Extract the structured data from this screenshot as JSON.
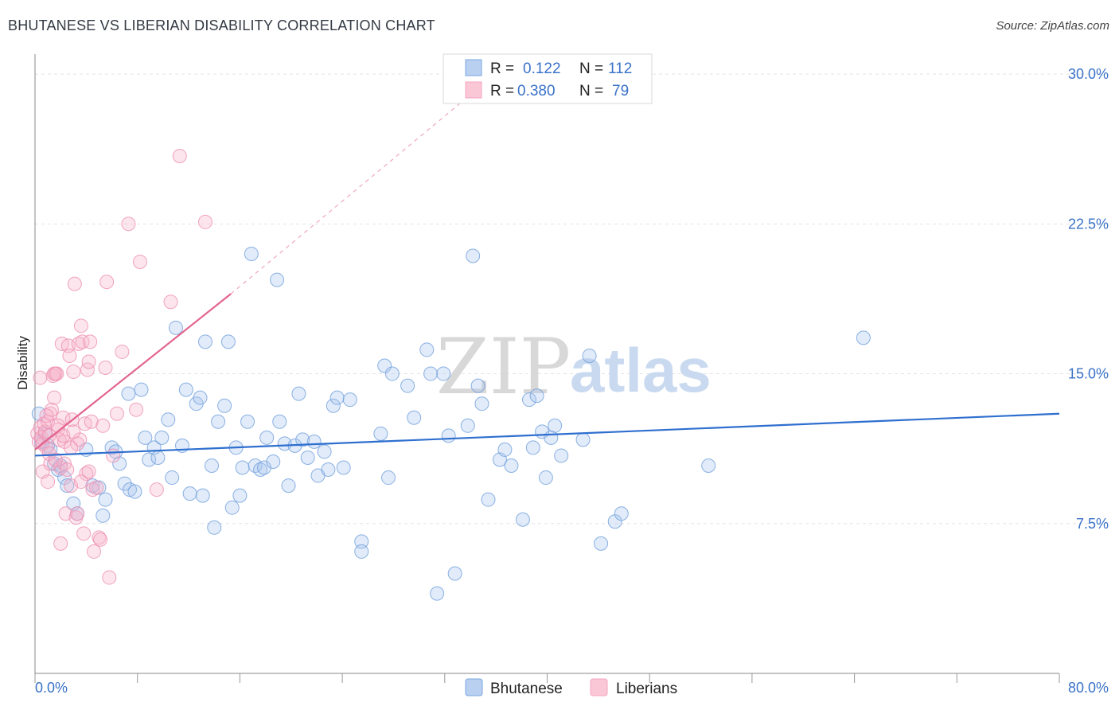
{
  "title": "BHUTANESE VS LIBERIAN DISABILITY CORRELATION CHART",
  "source": "Source: ZipAtlas.com",
  "chart_data": {
    "type": "scatter",
    "title": "BHUTANESE VS LIBERIAN DISABILITY CORRELATION CHART",
    "xlabel": "",
    "ylabel": "Disability",
    "xlim": [
      0,
      80
    ],
    "ylim": [
      0,
      31
    ],
    "x_tick_labels": [
      "0.0%",
      "80.0%"
    ],
    "y_ticks": [
      7.5,
      15.0,
      22.5,
      30.0
    ],
    "y_tick_labels": [
      "7.5%",
      "15.0%",
      "22.5%",
      "30.0%"
    ],
    "grid": true,
    "legend_position": "top-center",
    "watermark": [
      "ZIP",
      "atlas"
    ],
    "stats": [
      {
        "name": "Bhutanese",
        "R_label": "R =",
        "R": "0.122",
        "N_label": "N =",
        "N": "112"
      },
      {
        "name": "Liberians",
        "R_label": "R =",
        "R": "0.380",
        "N_label": "N =",
        "N": "79"
      }
    ],
    "series": [
      {
        "name": "Bhutanese",
        "color": "#7aa7e0",
        "line_color": "#2f6fcf",
        "trend": {
          "x0": 0,
          "y0": 10.9,
          "x1": 80,
          "y1": 13.0
        },
        "points": [
          [
            0.3,
            13.0
          ],
          [
            0.5,
            11.6
          ],
          [
            0.8,
            12.0
          ],
          [
            1.0,
            11.4
          ],
          [
            1.2,
            11.2
          ],
          [
            1.5,
            10.5
          ],
          [
            1.8,
            10.2
          ],
          [
            2.0,
            10.4
          ],
          [
            2.3,
            9.8
          ],
          [
            2.5,
            9.4
          ],
          [
            3.0,
            8.5
          ],
          [
            3.3,
            8.0
          ],
          [
            4.0,
            11.2
          ],
          [
            4.5,
            9.4
          ],
          [
            5.0,
            9.3
          ],
          [
            5.3,
            7.9
          ],
          [
            5.5,
            8.7
          ],
          [
            6.0,
            11.3
          ],
          [
            6.3,
            11.1
          ],
          [
            6.6,
            10.5
          ],
          [
            7.0,
            9.5
          ],
          [
            7.4,
            9.2
          ],
          [
            7.8,
            9.1
          ],
          [
            7.3,
            14.0
          ],
          [
            8.3,
            14.2
          ],
          [
            8.6,
            11.8
          ],
          [
            8.9,
            10.7
          ],
          [
            9.3,
            11.3
          ],
          [
            9.6,
            10.8
          ],
          [
            9.9,
            11.8
          ],
          [
            10.4,
            12.7
          ],
          [
            10.7,
            9.8
          ],
          [
            11.0,
            17.3
          ],
          [
            11.5,
            11.4
          ],
          [
            11.8,
            14.2
          ],
          [
            12.1,
            9.0
          ],
          [
            12.6,
            13.5
          ],
          [
            12.9,
            13.8
          ],
          [
            13.1,
            8.9
          ],
          [
            13.3,
            16.6
          ],
          [
            13.8,
            10.4
          ],
          [
            14.0,
            7.3
          ],
          [
            14.3,
            12.6
          ],
          [
            14.8,
            13.4
          ],
          [
            15.1,
            16.6
          ],
          [
            15.4,
            8.3
          ],
          [
            15.7,
            11.3
          ],
          [
            16.0,
            8.9
          ],
          [
            16.2,
            10.3
          ],
          [
            16.6,
            12.6
          ],
          [
            16.9,
            21.0
          ],
          [
            17.2,
            10.4
          ],
          [
            17.6,
            10.2
          ],
          [
            17.9,
            10.3
          ],
          [
            18.1,
            11.8
          ],
          [
            18.6,
            10.6
          ],
          [
            18.9,
            19.7
          ],
          [
            19.1,
            12.6
          ],
          [
            19.5,
            11.5
          ],
          [
            19.8,
            9.4
          ],
          [
            20.3,
            11.4
          ],
          [
            20.6,
            14.0
          ],
          [
            20.9,
            11.7
          ],
          [
            21.3,
            10.8
          ],
          [
            21.8,
            11.6
          ],
          [
            22.1,
            9.9
          ],
          [
            22.6,
            11.1
          ],
          [
            22.9,
            10.2
          ],
          [
            23.3,
            13.4
          ],
          [
            23.6,
            13.8
          ],
          [
            24.1,
            10.3
          ],
          [
            24.6,
            13.7
          ],
          [
            25.5,
            6.6
          ],
          [
            25.5,
            6.1
          ],
          [
            27.0,
            12.0
          ],
          [
            27.3,
            15.4
          ],
          [
            27.6,
            9.8
          ],
          [
            27.9,
            15.0
          ],
          [
            29.1,
            14.4
          ],
          [
            29.6,
            12.8
          ],
          [
            30.6,
            16.2
          ],
          [
            30.9,
            15.0
          ],
          [
            31.4,
            4.0
          ],
          [
            31.9,
            15.0
          ],
          [
            32.3,
            11.9
          ],
          [
            32.8,
            5.0
          ],
          [
            33.8,
            12.4
          ],
          [
            34.2,
            20.9
          ],
          [
            34.6,
            14.4
          ],
          [
            34.9,
            13.5
          ],
          [
            35.4,
            8.7
          ],
          [
            36.3,
            10.7
          ],
          [
            36.7,
            11.2
          ],
          [
            37.2,
            10.4
          ],
          [
            38.1,
            7.7
          ],
          [
            38.6,
            13.7
          ],
          [
            38.9,
            11.3
          ],
          [
            39.2,
            13.9
          ],
          [
            39.6,
            12.1
          ],
          [
            39.9,
            9.8
          ],
          [
            40.3,
            11.8
          ],
          [
            40.6,
            12.4
          ],
          [
            41.1,
            10.9
          ],
          [
            42.8,
            11.7
          ],
          [
            43.3,
            15.9
          ],
          [
            44.2,
            6.5
          ],
          [
            45.3,
            7.6
          ],
          [
            45.8,
            8.0
          ],
          [
            52.6,
            10.4
          ],
          [
            64.7,
            16.8
          ]
        ]
      },
      {
        "name": "Liberians",
        "color": "#f4a6c0",
        "line_color": "#e2638e",
        "trend": {
          "x0": 0,
          "y0": 11.2,
          "x1": 15.3,
          "y1": 19.0
        },
        "trend_ext": {
          "x0": 15.3,
          "y0": 19.0,
          "x1": 35.0,
          "y1": 29.5
        },
        "points": [
          [
            0.2,
            12.0
          ],
          [
            0.3,
            11.6
          ],
          [
            0.4,
            12.3
          ],
          [
            0.5,
            11.8
          ],
          [
            0.6,
            11.5
          ],
          [
            0.7,
            12.5
          ],
          [
            0.8,
            12.1
          ],
          [
            0.9,
            11.3
          ],
          [
            1.0,
            12.6
          ],
          [
            1.1,
            11.9
          ],
          [
            0.4,
            14.8
          ],
          [
            0.6,
            10.1
          ],
          [
            1.0,
            9.6
          ],
          [
            1.2,
            13.0
          ],
          [
            1.3,
            13.2
          ],
          [
            1.4,
            14.9
          ],
          [
            1.5,
            13.8
          ],
          [
            1.6,
            15.0
          ],
          [
            1.7,
            15.0
          ],
          [
            1.8,
            12.2
          ],
          [
            1.9,
            11.7
          ],
          [
            2.0,
            10.3
          ],
          [
            2.1,
            16.5
          ],
          [
            2.2,
            12.8
          ],
          [
            2.3,
            10.5
          ],
          [
            2.4,
            8.0
          ],
          [
            2.5,
            10.2
          ],
          [
            2.6,
            16.4
          ],
          [
            2.7,
            15.9
          ],
          [
            2.8,
            9.4
          ],
          [
            2.9,
            12.7
          ],
          [
            3.0,
            15.1
          ],
          [
            3.1,
            19.5
          ],
          [
            3.2,
            7.8
          ],
          [
            3.3,
            11.5
          ],
          [
            3.4,
            16.5
          ],
          [
            3.5,
            11.7
          ],
          [
            3.6,
            17.4
          ],
          [
            3.7,
            16.6
          ],
          [
            3.8,
            7.0
          ],
          [
            3.9,
            12.5
          ],
          [
            4.0,
            10.0
          ],
          [
            4.1,
            15.2
          ],
          [
            4.2,
            15.6
          ],
          [
            4.3,
            16.6
          ],
          [
            4.4,
            12.6
          ],
          [
            4.5,
            9.2
          ],
          [
            4.6,
            6.1
          ],
          [
            4.8,
            9.3
          ],
          [
            5.0,
            6.8
          ],
          [
            5.1,
            6.7
          ],
          [
            5.3,
            12.4
          ],
          [
            5.5,
            15.3
          ],
          [
            5.6,
            19.6
          ],
          [
            5.8,
            4.8
          ],
          [
            6.1,
            10.9
          ],
          [
            6.4,
            13.0
          ],
          [
            6.8,
            16.1
          ],
          [
            7.3,
            22.5
          ],
          [
            8.2,
            20.6
          ],
          [
            9.5,
            9.2
          ],
          [
            10.6,
            18.6
          ],
          [
            11.3,
            25.9
          ],
          [
            13.3,
            22.6
          ],
          [
            7.9,
            13.2
          ],
          [
            2.0,
            6.5
          ],
          [
            1.5,
            15.0
          ],
          [
            2.3,
            11.6
          ],
          [
            3.3,
            8.0
          ],
          [
            1.2,
            10.5
          ],
          [
            1.8,
            12.4
          ],
          [
            2.8,
            11.3
          ],
          [
            0.9,
            12.9
          ],
          [
            1.1,
            11.0
          ],
          [
            1.6,
            10.7
          ],
          [
            2.2,
            11.9
          ],
          [
            3.0,
            12.1
          ],
          [
            3.6,
            9.6
          ],
          [
            4.2,
            10.1
          ]
        ]
      }
    ]
  },
  "legend_bottom": [
    "Bhutanese",
    "Liberians"
  ]
}
